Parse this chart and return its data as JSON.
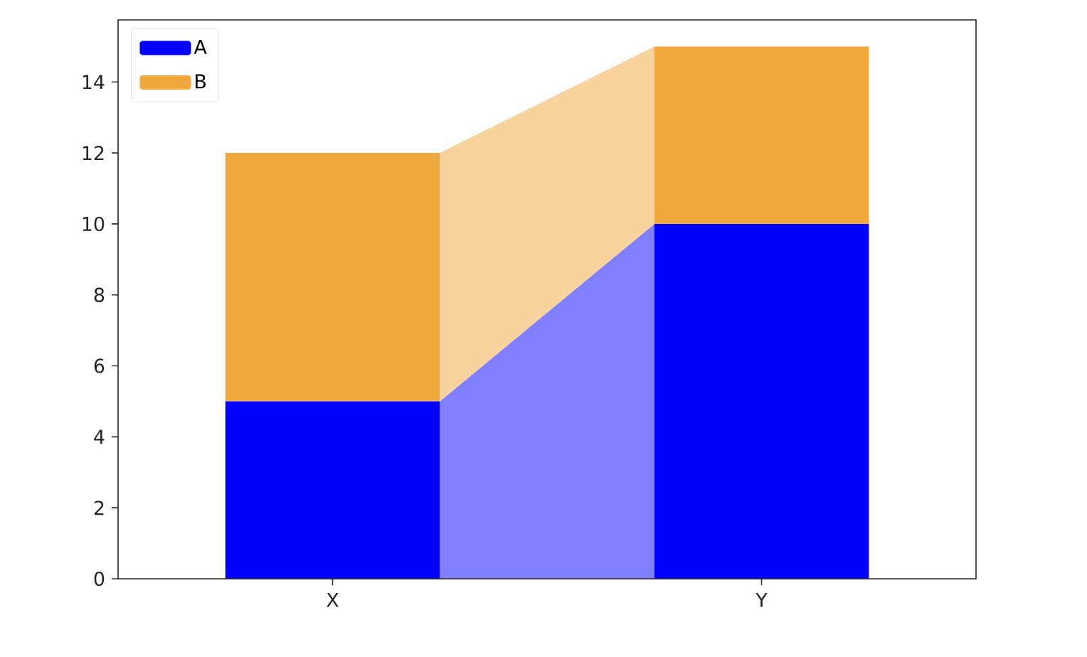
{
  "chart_data": {
    "type": "bar",
    "stacked": true,
    "categories": [
      "X",
      "Y"
    ],
    "series": [
      {
        "name": "A",
        "color": "#0000ff",
        "values": [
          5,
          10
        ]
      },
      {
        "name": "B",
        "color": "#f0a83c",
        "values": [
          7,
          5
        ]
      }
    ],
    "ylim": [
      0,
      15.75
    ],
    "yticks": [
      0,
      2,
      4,
      6,
      8,
      10,
      12,
      14
    ],
    "grid": false,
    "legend": "top left"
  }
}
